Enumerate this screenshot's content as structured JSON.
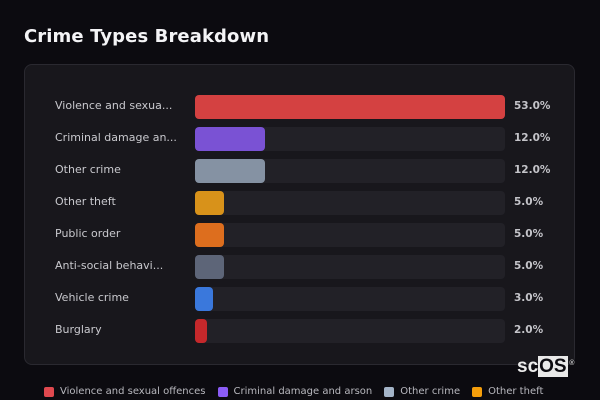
{
  "page": {
    "title": "Crime Types Breakdown"
  },
  "chart_data": {
    "type": "bar",
    "orientation": "horizontal",
    "title": "Crime Types Breakdown",
    "categories": [
      "Violence and sexual offences",
      "Criminal damage and arson",
      "Other crime",
      "Other theft",
      "Public order",
      "Anti-social behaviour",
      "Vehicle crime",
      "Burglary"
    ],
    "display_labels": [
      "Violence and sexua...",
      "Criminal damage an...",
      "Other crime",
      "Other theft",
      "Public order",
      "Anti-social behavi...",
      "Vehicle crime",
      "Burglary"
    ],
    "values": [
      53.0,
      12.0,
      12.0,
      5.0,
      5.0,
      5.0,
      3.0,
      2.0
    ],
    "value_labels": [
      "53.0%",
      "12.0%",
      "12.0%",
      "5.0%",
      "5.0%",
      "5.0%",
      "3.0%",
      "2.0%"
    ],
    "colors": [
      "#d44141",
      "#7a52d4",
      "#8592a3",
      "#d8921a",
      "#dd6e1e",
      "#5d6578",
      "#3a78dc",
      "#c5282b"
    ],
    "xlim": [
      0,
      53
    ],
    "grid": false,
    "legend_position": "bottom"
  },
  "legend": {
    "items": [
      {
        "label": "Violence and sexual offences",
        "color": "#e0494f"
      },
      {
        "label": "Criminal damage and arson",
        "color": "#8b5cf6"
      },
      {
        "label": "Other crime",
        "color": "#a4b4c8"
      },
      {
        "label": "Other theft",
        "color": "#f59e0b"
      }
    ]
  },
  "branding": {
    "logo_prefix": "sc",
    "logo_suffix": "OS",
    "registered": "®"
  }
}
